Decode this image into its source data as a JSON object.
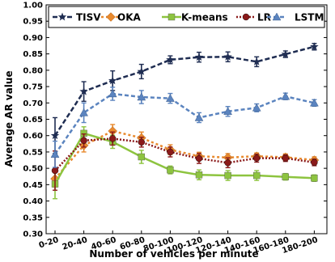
{
  "chart_data": {
    "type": "line",
    "xlabel": "Number of vehicles per minute",
    "ylabel": "Average AR value",
    "ylim": [
      0.3,
      1.0
    ],
    "yticks": [
      0.3,
      0.35,
      0.4,
      0.45,
      0.5,
      0.55,
      0.6,
      0.65,
      0.7,
      0.75,
      0.8,
      0.85,
      0.9,
      0.95,
      1.0
    ],
    "categories": [
      "0-20",
      "20-40",
      "40-60",
      "60-80",
      "80-100",
      "100-120",
      "120-140",
      "140-160",
      "160-180",
      "180-200"
    ],
    "grid": false,
    "legend_position": "top",
    "series": [
      {
        "name": "TISV",
        "color": "#1f2d52",
        "dash": "6,3",
        "marker": "star",
        "values": [
          0.6,
          0.735,
          0.768,
          0.796,
          0.832,
          0.84,
          0.841,
          0.826,
          0.849,
          0.872
        ],
        "errors": [
          0.055,
          0.03,
          0.03,
          0.022,
          0.012,
          0.015,
          0.015,
          0.015,
          0.01,
          0.01
        ]
      },
      {
        "name": "OKA",
        "color": "#e88a2e",
        "dash": "3,3",
        "marker": "diamond",
        "values": [
          0.468,
          0.57,
          0.614,
          0.593,
          0.557,
          0.537,
          0.533,
          0.537,
          0.534,
          0.525
        ],
        "errors": [
          0.025,
          0.02,
          0.02,
          0.018,
          0.015,
          0.012,
          0.012,
          0.01,
          0.01,
          0.01
        ]
      },
      {
        "name": "K-means",
        "color": "#8dc43f",
        "dash": "",
        "marker": "square",
        "values": [
          0.452,
          0.607,
          0.581,
          0.535,
          0.495,
          0.48,
          0.478,
          0.478,
          0.474,
          0.47
        ],
        "errors": [
          0.045,
          0.02,
          0.02,
          0.02,
          0.012,
          0.015,
          0.015,
          0.015,
          0.01,
          0.01
        ]
      },
      {
        "name": "LR",
        "color": "#8b1a1a",
        "dash": "2,2",
        "marker": "circle",
        "values": [
          0.493,
          0.585,
          0.591,
          0.58,
          0.55,
          0.53,
          0.517,
          0.531,
          0.531,
          0.518
        ],
        "errors": [
          0.06,
          0.02,
          0.02,
          0.015,
          0.015,
          0.015,
          0.015,
          0.012,
          0.01,
          0.01
        ]
      },
      {
        "name": "LSTM",
        "color": "#5b84bf",
        "dash": "5,3",
        "marker": "triangle",
        "values": [
          0.543,
          0.67,
          0.728,
          0.718,
          0.714,
          0.655,
          0.674,
          0.685,
          0.72,
          0.7
        ],
        "errors": [
          0.04,
          0.03,
          0.02,
          0.02,
          0.015,
          0.015,
          0.015,
          0.012,
          0.01,
          0.01
        ]
      }
    ]
  }
}
